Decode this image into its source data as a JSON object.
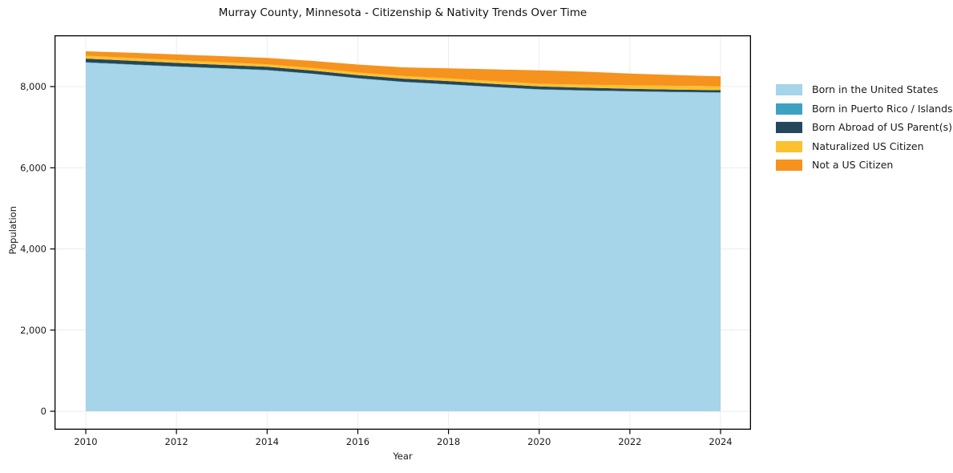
{
  "chart_data": {
    "type": "area",
    "stacked": true,
    "title": "Murray County, Minnesota - Citizenship & Nativity Trends Over Time",
    "xlabel": "Year",
    "ylabel": "Population",
    "grid": true,
    "legend_position": "right-outside",
    "background": "#ffffff",
    "xlim": [
      2009.3,
      2024.7
    ],
    "ylim": [
      -440,
      9260
    ],
    "x": [
      2010,
      2011,
      2012,
      2013,
      2014,
      2015,
      2016,
      2017,
      2018,
      2019,
      2020,
      2021,
      2022,
      2023,
      2024
    ],
    "series": [
      {
        "name": "Born in the United States",
        "color": "#a6d4e8",
        "values": [
          8590,
          8540,
          8490,
          8445,
          8400,
          8310,
          8200,
          8110,
          8050,
          7985,
          7925,
          7900,
          7880,
          7862,
          7850
        ]
      },
      {
        "name": "Born in Puerto Rico / Islands",
        "color": "#3da2c2",
        "values": [
          10,
          10,
          9,
          9,
          9,
          8,
          8,
          8,
          8,
          8,
          8,
          7,
          7,
          7,
          7
        ]
      },
      {
        "name": "Born Abroad of US Parent(s)",
        "color": "#25475c",
        "values": [
          90,
          88,
          85,
          82,
          80,
          78,
          76,
          77,
          79,
          75,
          70,
          65,
          60,
          58,
          55
        ]
      },
      {
        "name": "Naturalized US Citizen",
        "color": "#fcc12e",
        "values": [
          70,
          70,
          68,
          64,
          60,
          62,
          64,
          65,
          67,
          66,
          67,
          75,
          85,
          92,
          95
        ]
      },
      {
        "name": "Not a US Citizen",
        "color": "#f6921e",
        "values": [
          110,
          125,
          140,
          150,
          158,
          175,
          195,
          215,
          244,
          290,
          330,
          320,
          290,
          265,
          245
        ]
      }
    ],
    "xticks": [
      {
        "value": 2010,
        "label": "2010"
      },
      {
        "value": 2012,
        "label": "2012"
      },
      {
        "value": 2014,
        "label": "2014"
      },
      {
        "value": 2016,
        "label": "2016"
      },
      {
        "value": 2018,
        "label": "2018"
      },
      {
        "value": 2020,
        "label": "2020"
      },
      {
        "value": 2022,
        "label": "2022"
      },
      {
        "value": 2024,
        "label": "2024"
      }
    ],
    "yticks": [
      {
        "value": 0,
        "label": "0"
      },
      {
        "value": 2000,
        "label": "2,000"
      },
      {
        "value": 4000,
        "label": "4,000"
      },
      {
        "value": 6000,
        "label": "6,000"
      },
      {
        "value": 8000,
        "label": "8,000"
      }
    ],
    "colors": {
      "grid": "#ececec",
      "spine": "#000000",
      "tick_text": "#1a1a1a"
    }
  }
}
